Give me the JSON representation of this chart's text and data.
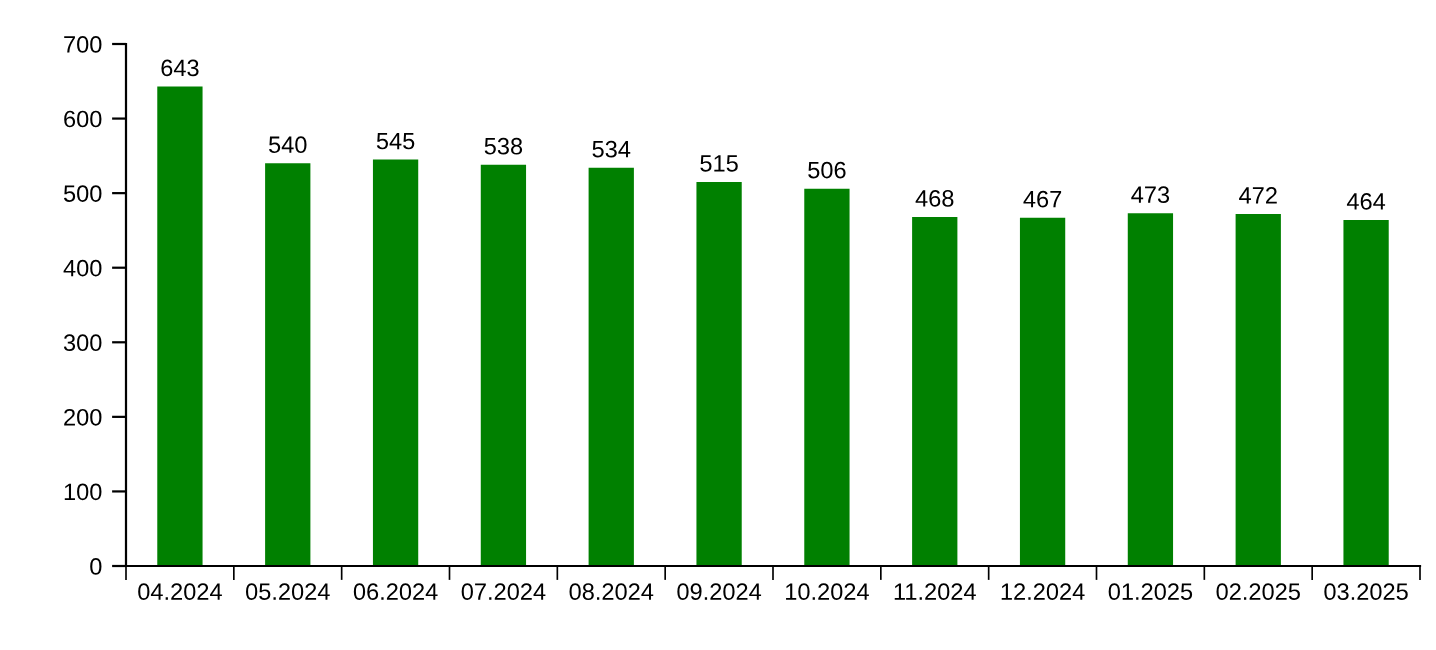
{
  "chart_data": {
    "type": "bar",
    "categories": [
      "04.2024",
      "05.2024",
      "06.2024",
      "07.2024",
      "08.2024",
      "09.2024",
      "10.2024",
      "11.2024",
      "12.2024",
      "01.2025",
      "02.2025",
      "03.2025"
    ],
    "values": [
      643,
      540,
      545,
      538,
      534,
      515,
      506,
      468,
      467,
      473,
      472,
      464
    ],
    "color": "#008000",
    "ylim": [
      0,
      700
    ],
    "yticks": [
      0,
      100,
      200,
      300,
      400,
      500,
      600,
      700
    ],
    "data_labels": true,
    "grid": false,
    "legend": false
  }
}
